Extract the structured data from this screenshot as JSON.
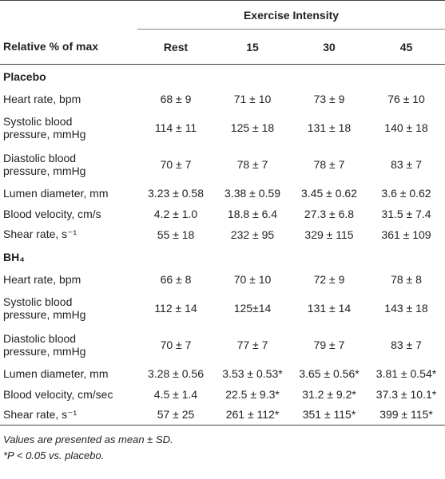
{
  "table": {
    "group_header": "Exercise Intensity",
    "columns": [
      "Relative % of max",
      "Rest",
      "15",
      "30",
      "45"
    ],
    "sections": [
      {
        "title": "Placebo",
        "rows": [
          {
            "label": [
              "Heart rate, bpm"
            ],
            "cells": [
              "68 ± 9",
              "71 ± 10",
              "73 ± 9",
              "76 ± 10"
            ]
          },
          {
            "label": [
              "Systolic blood",
              "pressure, mmHg"
            ],
            "cells": [
              "114 ± 11",
              "125 ± 18",
              "131 ± 18",
              "140 ± 18"
            ]
          },
          {
            "label": [
              "Diastolic blood",
              "pressure, mmHg"
            ],
            "cells": [
              "70 ± 7",
              "78 ± 7",
              "78 ± 7",
              "83 ± 7"
            ]
          },
          {
            "label": [
              "Lumen diameter, mm"
            ],
            "cells": [
              "3.23 ± 0.58",
              "3.38 ± 0.59",
              "3.45 ± 0.62",
              "3.6 ± 0.62"
            ]
          },
          {
            "label": [
              "Blood velocity, cm/s"
            ],
            "cells": [
              "4.2 ± 1.0",
              "18.8 ± 6.4",
              "27.3 ± 6.8",
              "31.5 ± 7.4"
            ]
          },
          {
            "label": [
              "Shear rate, s⁻¹"
            ],
            "cells": [
              "55 ± 18",
              "232 ± 95",
              "329 ± 115",
              "361 ± 109"
            ]
          }
        ]
      },
      {
        "title": "BH₄",
        "rows": [
          {
            "label": [
              "Heart rate, bpm"
            ],
            "cells": [
              "66 ± 8",
              "70 ± 10",
              "72 ± 9",
              "78 ± 8"
            ]
          },
          {
            "label": [
              "Systolic blood",
              "pressure, mmHg"
            ],
            "cells": [
              "112 ± 14",
              "125±14",
              "131 ± 14",
              "143 ± 18"
            ]
          },
          {
            "label": [
              "Diastolic blood",
              "pressure, mmHg"
            ],
            "cells": [
              "70 ± 7",
              "77 ± 7",
              "79 ± 7",
              "83 ± 7"
            ]
          },
          {
            "label": [
              "Lumen diameter, mm"
            ],
            "cells": [
              "3.28 ± 0.56",
              "3.53 ± 0.53*",
              "3.65 ± 0.56*",
              "3.81 ± 0.54*"
            ]
          },
          {
            "label": [
              "Blood velocity, cm/sec"
            ],
            "cells": [
              "4.5 ± 1.4",
              "22.5 ± 9.3*",
              "31.2 ± 9.2*",
              "37.3 ± 10.1*"
            ]
          },
          {
            "label": [
              "Shear rate, s⁻¹"
            ],
            "cells": [
              "57 ± 25",
              "261 ± 112*",
              "351 ± 115*",
              "399 ± 115*"
            ]
          }
        ]
      }
    ]
  },
  "footnotes": [
    "Values are presented as mean ± SD.",
    "*P < 0.05 vs. placebo."
  ]
}
